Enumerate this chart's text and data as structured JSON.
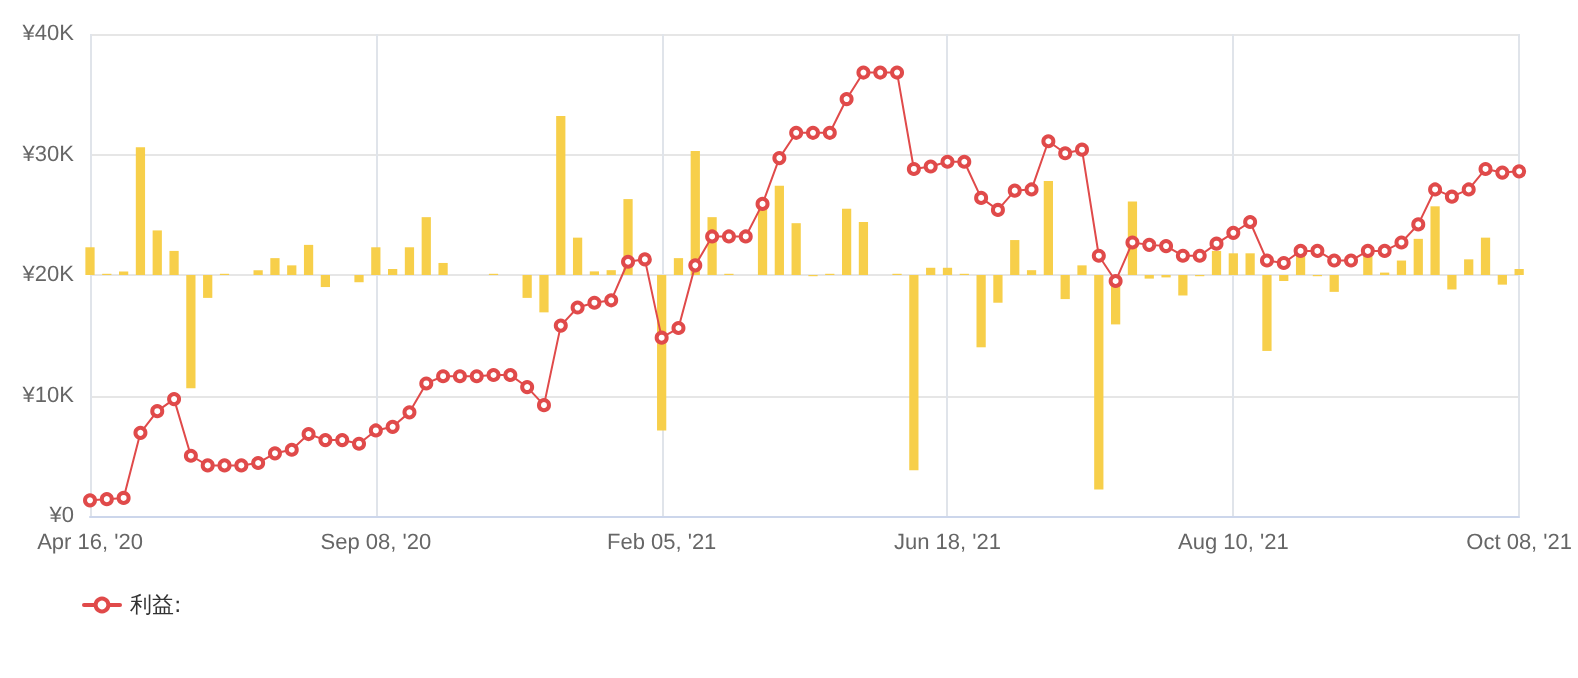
{
  "chart_data": {
    "type": "line",
    "categories": [
      "Apr 16, '20",
      null,
      null,
      null,
      null,
      null,
      null,
      null,
      null,
      null,
      null,
      null,
      null,
      null,
      null,
      null,
      null,
      "Sep 08, '20",
      null,
      null,
      null,
      null,
      null,
      null,
      null,
      null,
      null,
      null,
      null,
      null,
      null,
      null,
      null,
      null,
      "Feb 05, '21",
      null,
      null,
      null,
      null,
      null,
      null,
      null,
      null,
      null,
      null,
      null,
      null,
      null,
      null,
      null,
      null,
      "Jun 18, '21",
      null,
      null,
      null,
      null,
      null,
      null,
      null,
      null,
      null,
      null,
      null,
      null,
      null,
      null,
      null,
      null,
      "Aug 10, '21",
      null,
      null,
      null,
      null,
      null,
      null,
      null,
      null,
      null,
      null,
      null,
      null,
      null,
      null,
      null,
      null,
      "Oct 08, '21"
    ],
    "series": [
      {
        "type": "bar",
        "color": "#f7cf4a",
        "base": [
          20000,
          20000,
          20000,
          20000,
          20000,
          20000,
          20000,
          20000,
          20000,
          null,
          20000,
          20000,
          20000,
          20000,
          20000,
          null,
          20000,
          20000,
          20000,
          20000,
          20000,
          20000,
          null,
          null,
          20000,
          null,
          20000,
          20000,
          20000,
          20000,
          20000,
          20000,
          20000,
          null,
          20000,
          20000,
          20000,
          20000,
          20000,
          null,
          20000,
          20000,
          20000,
          20000,
          20000,
          20000,
          20000,
          null,
          20000,
          20000,
          20000,
          20000,
          20000,
          20000,
          20000,
          20000,
          20000,
          20000,
          20000,
          20000,
          20000,
          20000,
          20000,
          20000,
          20000,
          20000,
          20000,
          20000,
          20000,
          20000,
          20000,
          20000,
          20000,
          20000,
          20000,
          null,
          20000,
          20000,
          20000,
          20000,
          20000,
          20000,
          20000,
          20000,
          20000,
          20000
        ],
        "values": [
          2300,
          100,
          300,
          10600,
          3700,
          2000,
          -9400,
          -1900,
          100,
          null,
          400,
          1400,
          800,
          2500,
          -1000,
          null,
          -600,
          2300,
          500,
          2300,
          4800,
          1000,
          null,
          null,
          100,
          null,
          -1900,
          -3100,
          13200,
          3100,
          300,
          400,
          6300,
          null,
          -12900,
          1400,
          10300,
          4800,
          100,
          null,
          5500,
          7400,
          4300,
          -100,
          100,
          5500,
          4400,
          null,
          100,
          -16200,
          600,
          600,
          100,
          -6000,
          -2300,
          2900,
          400,
          7800,
          -2000,
          800,
          -17800,
          -4100,
          6100,
          -300,
          -200,
          -1700,
          -100,
          2000,
          1800,
          1800,
          -6300,
          -500,
          1800,
          -100,
          -1400,
          null,
          1600,
          200,
          1200,
          3000,
          5700,
          -1200,
          1300,
          3100,
          -800,
          500
        ]
      },
      {
        "name": "利益:",
        "color": "#e04a4a",
        "marker": "circle",
        "values": [
          1300,
          1400,
          1500,
          6900,
          8700,
          9700,
          5000,
          4200,
          4200,
          4200,
          4400,
          5200,
          5500,
          6800,
          6300,
          6300,
          6000,
          7100,
          7400,
          8600,
          11000,
          11600,
          11600,
          11600,
          11700,
          11700,
          10700,
          9200,
          15800,
          17300,
          17700,
          17900,
          21100,
          21300,
          14800,
          15600,
          20800,
          23200,
          23200,
          23200,
          25900,
          29700,
          31800,
          31800,
          31800,
          34600,
          36800,
          36800,
          36800,
          28800,
          29000,
          29400,
          29400,
          26400,
          25400,
          27000,
          27100,
          31100,
          30100,
          30400,
          21600,
          19500,
          22700,
          22500,
          22400,
          21600,
          21600,
          22600,
          23500,
          24400,
          21200,
          21000,
          22000,
          22000,
          21200,
          21200,
          22000,
          22000,
          22700,
          24200,
          27100,
          26500,
          27100,
          28800,
          28500,
          28600
        ]
      }
    ],
    "ylim": [
      0,
      40000
    ],
    "yticks": [
      {
        "value": 0,
        "label": "¥0"
      },
      {
        "value": 10000,
        "label": "¥10K"
      },
      {
        "value": 20000,
        "label": "¥20K"
      },
      {
        "value": 30000,
        "label": "¥30K"
      },
      {
        "value": 40000,
        "label": "¥40K"
      }
    ],
    "grid": true,
    "legend": "bottom left"
  }
}
